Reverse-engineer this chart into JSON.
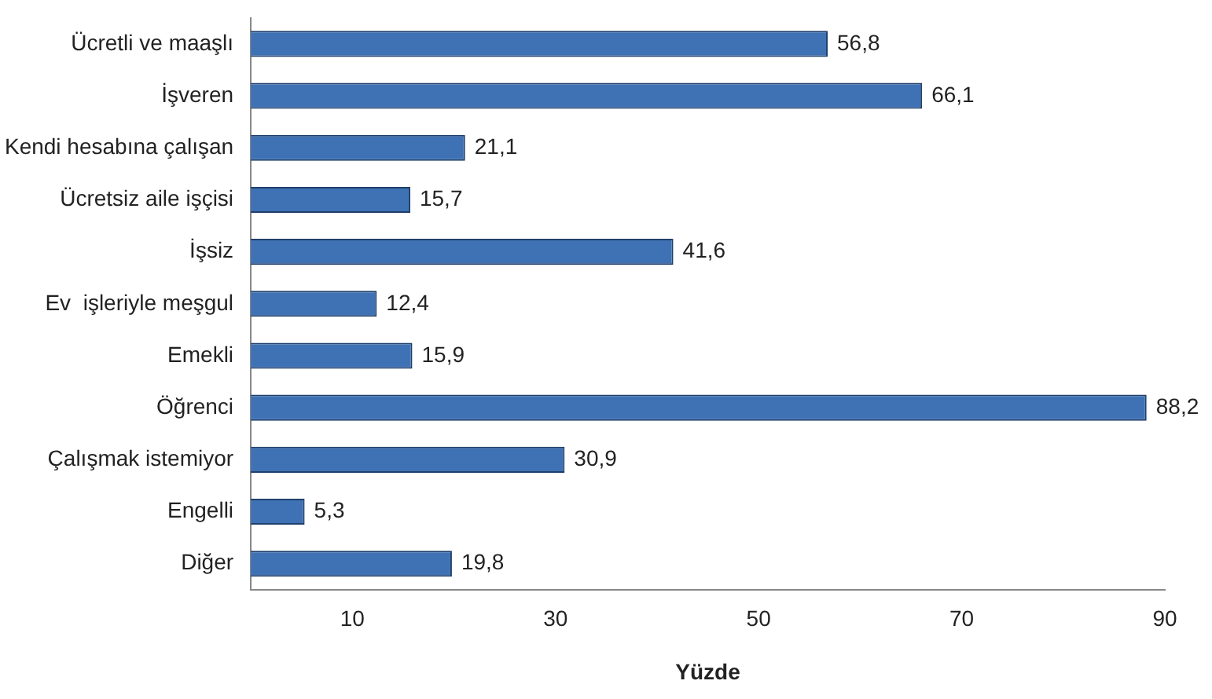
{
  "chart_data": {
    "type": "bar",
    "orientation": "horizontal",
    "xlabel": "Yüzde",
    "categories": [
      "Ücretli ve maaşlı",
      "İşveren",
      "Kendi hesabına çalışan",
      "Ücretsiz aile işçisi",
      "İşsiz",
      "Ev  işleriyle meşgul",
      "Emekli",
      "Öğrenci",
      "Çalışmak istemiyor",
      "Engelli",
      "Diğer"
    ],
    "values": [
      56.8,
      66.1,
      21.1,
      15.7,
      41.6,
      12.4,
      15.9,
      88.2,
      30.9,
      5.3,
      19.8
    ],
    "value_labels": [
      "56,8",
      "66,1",
      "21,1",
      "15,7",
      "41,6",
      "12,4",
      "15,9",
      "88,2",
      "30,9",
      "5,3",
      "19,8"
    ],
    "color": "#3f72b5",
    "xlim": [
      0,
      90
    ],
    "xticks": [
      10,
      30,
      50,
      70,
      90
    ],
    "grid": false,
    "legend": false
  }
}
